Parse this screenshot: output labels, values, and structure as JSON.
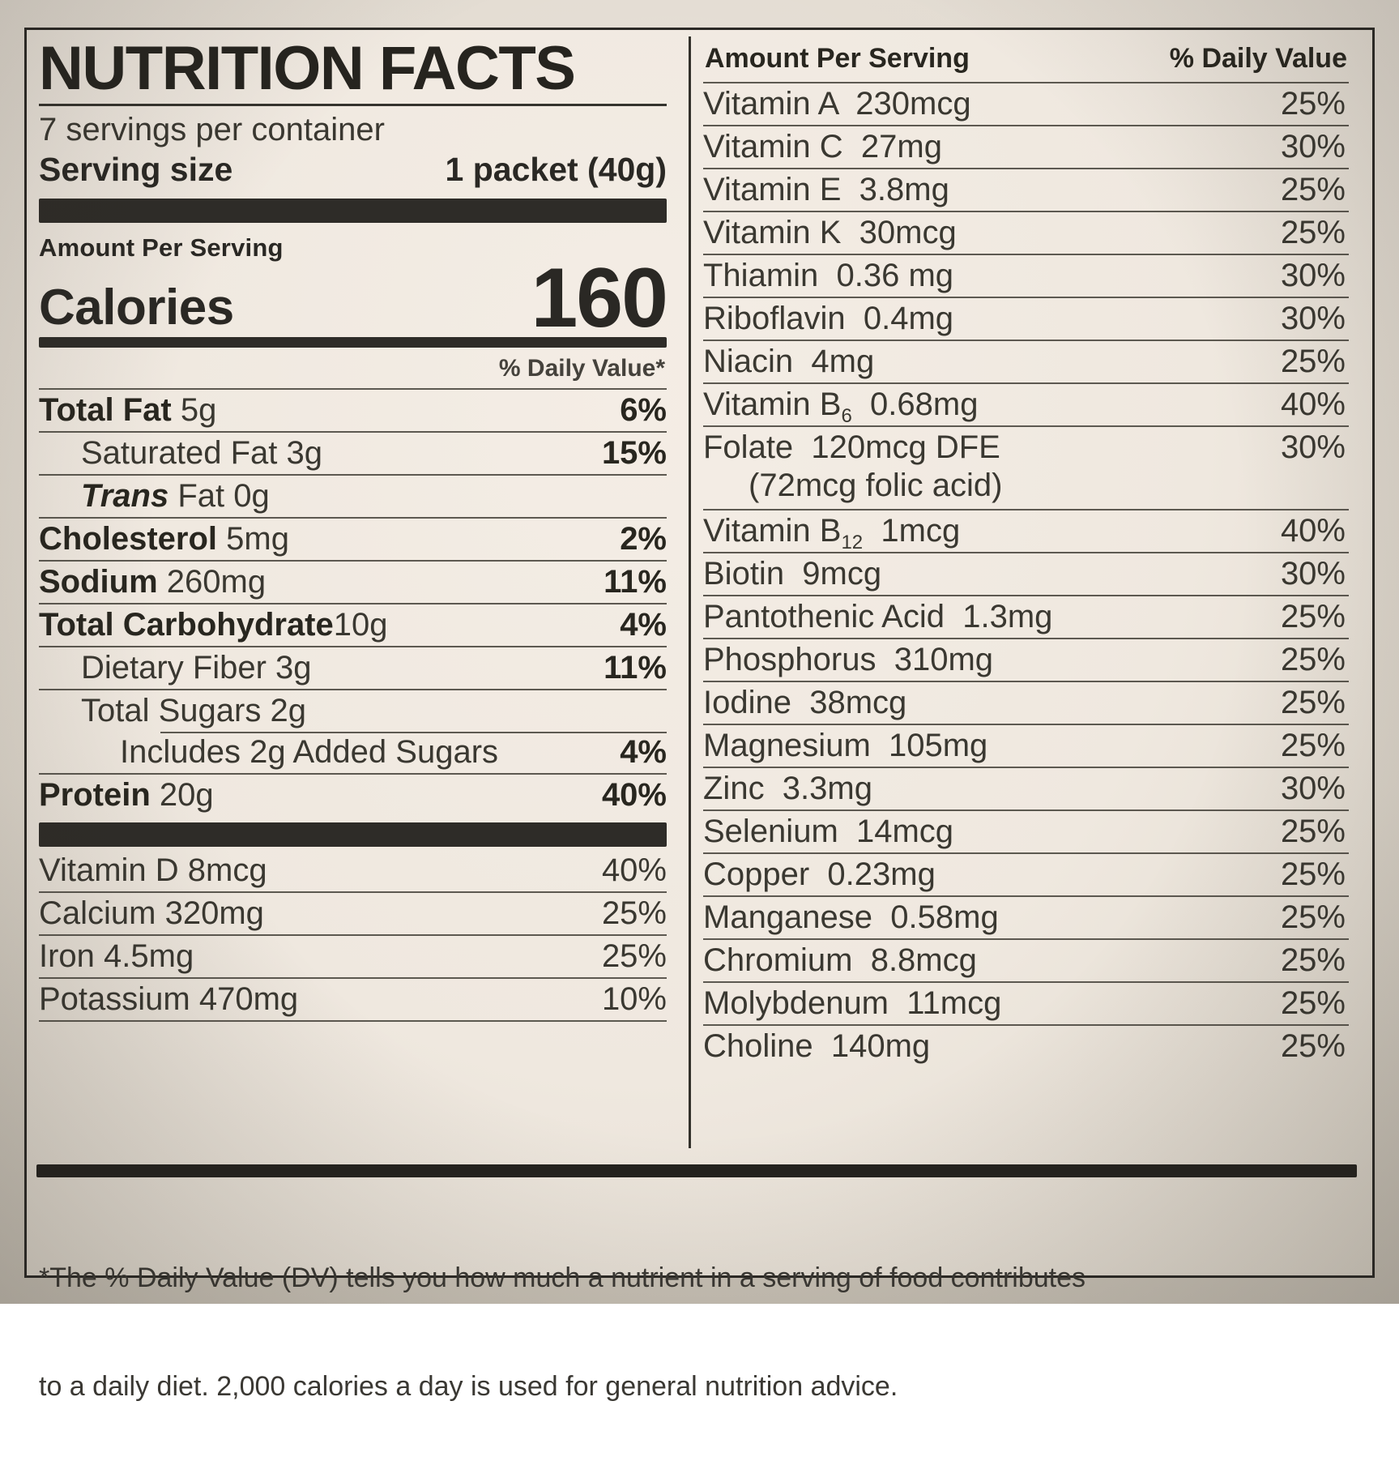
{
  "label": {
    "title": "NUTRITION FACTS",
    "servings_per_container": "7 servings per container",
    "serving_size_label": "Serving size",
    "serving_size_value": "1 packet (40g)",
    "amount_per_serving": "Amount Per Serving",
    "calories_label": "Calories",
    "calories_value": "160",
    "daily_value_note": "% Daily Value*",
    "left_rows": [
      {
        "cls": "",
        "b": "Total Fat",
        "i": "",
        "r": " 5g",
        "dv": "6%"
      },
      {
        "cls": "indent1",
        "b": "",
        "i": "",
        "r": "Saturated Fat 3g",
        "dv": "15%"
      },
      {
        "cls": "indent1",
        "b": "",
        "i": "Trans",
        "r": " Fat 0g",
        "dv": ""
      },
      {
        "cls": "",
        "b": "Cholesterol",
        "i": "",
        "r": " 5mg",
        "dv": "2%"
      },
      {
        "cls": "",
        "b": "Sodium",
        "i": "",
        "r": " 260mg",
        "dv": "11%"
      },
      {
        "cls": "",
        "b": "Total Carbohydrate",
        "i": "",
        "r": "10g",
        "dv": "4%"
      },
      {
        "cls": "indent1",
        "b": "",
        "i": "",
        "r": "Dietary Fiber 3g",
        "dv": "11%"
      },
      {
        "cls": "indent1",
        "b": "",
        "i": "",
        "r": "Total Sugars 2g",
        "dv": ""
      },
      {
        "cls": "indent2 partial",
        "b": "",
        "i": "",
        "r": "Includes 2g Added Sugars",
        "dv": "4%"
      },
      {
        "cls": "",
        "b": "Protein",
        "i": "",
        "r": " 20g",
        "dv": "40%"
      }
    ],
    "left_micros": [
      {
        "cls": "",
        "b": "",
        "i": "",
        "r": "Vitamin D 8mcg",
        "dv": "40%"
      },
      {
        "cls": "",
        "b": "",
        "i": "",
        "r": "Calcium 320mg",
        "dv": "25%"
      },
      {
        "cls": "",
        "b": "",
        "i": "",
        "r": "Iron 4.5mg",
        "dv": "25%"
      },
      {
        "cls": "",
        "b": "",
        "i": "",
        "r": "Potassium 470mg",
        "dv": "10%"
      }
    ],
    "right_header": {
      "amount": "Amount Per Serving",
      "dv": "% Daily Value"
    },
    "right_rows": [
      {
        "name": "Vitamin A  230mcg",
        "sub": "",
        "name2": "",
        "line2": "",
        "dv": "25%"
      },
      {
        "name": "Vitamin C  27mg",
        "sub": "",
        "name2": "",
        "line2": "",
        "dv": "30%"
      },
      {
        "name": "Vitamin E  3.8mg",
        "sub": "",
        "name2": "",
        "line2": "",
        "dv": "25%"
      },
      {
        "name": "Vitamin K  30mcg",
        "sub": "",
        "name2": "",
        "line2": "",
        "dv": "25%"
      },
      {
        "name": "Thiamin  0.36 mg",
        "sub": "",
        "name2": "",
        "line2": "",
        "dv": "30%"
      },
      {
        "name": "Riboflavin  0.4mg",
        "sub": "",
        "name2": "",
        "line2": "",
        "dv": "30%"
      },
      {
        "name": "Niacin  4mg",
        "sub": "",
        "name2": "",
        "line2": "",
        "dv": "25%"
      },
      {
        "name": "Vitamin B",
        "sub": "6",
        "name2": "  0.68mg",
        "line2": "",
        "dv": "40%"
      },
      {
        "name": "Folate  120mcg DFE",
        "sub": "",
        "name2": "",
        "line2": "(72mcg folic acid)",
        "dv": "30%"
      },
      {
        "name": "Vitamin B",
        "sub": "12",
        "name2": "  1mcg",
        "line2": "",
        "dv": "40%"
      },
      {
        "name": "Biotin  9mcg",
        "sub": "",
        "name2": "",
        "line2": "",
        "dv": "30%"
      },
      {
        "name": "Pantothenic Acid  1.3mg",
        "sub": "",
        "name2": "",
        "line2": "",
        "dv": "25%"
      },
      {
        "name": "Phosphorus  310mg",
        "sub": "",
        "name2": "",
        "line2": "",
        "dv": "25%"
      },
      {
        "name": "Iodine  38mcg",
        "sub": "",
        "name2": "",
        "line2": "",
        "dv": "25%"
      },
      {
        "name": "Magnesium  105mg",
        "sub": "",
        "name2": "",
        "line2": "",
        "dv": "25%"
      },
      {
        "name": "Zinc  3.3mg",
        "sub": "",
        "name2": "",
        "line2": "",
        "dv": "30%"
      },
      {
        "name": "Selenium  14mcg",
        "sub": "",
        "name2": "",
        "line2": "",
        "dv": "25%"
      },
      {
        "name": "Copper  0.23mg",
        "sub": "",
        "name2": "",
        "line2": "",
        "dv": "25%"
      },
      {
        "name": "Manganese  0.58mg",
        "sub": "",
        "name2": "",
        "line2": "",
        "dv": "25%"
      },
      {
        "name": "Chromium  8.8mcg",
        "sub": "",
        "name2": "",
        "line2": "",
        "dv": "25%"
      },
      {
        "name": "Molybdenum  11mcg",
        "sub": "",
        "name2": "",
        "line2": "",
        "dv": "25%"
      },
      {
        "name": "Choline  140mg",
        "sub": "",
        "name2": "",
        "line2": "",
        "dv": "25%"
      }
    ],
    "footnote_line1": "*The % Daily Value (DV) tells you how much a nutrient in a serving of food contributes",
    "footnote_line2": "to a daily diet. 2,000 calories a day is used for general nutrition advice.",
    "colors": {
      "label_background": "#efe8df",
      "ink": "#2a2824",
      "rule": "#48443c"
    }
  }
}
